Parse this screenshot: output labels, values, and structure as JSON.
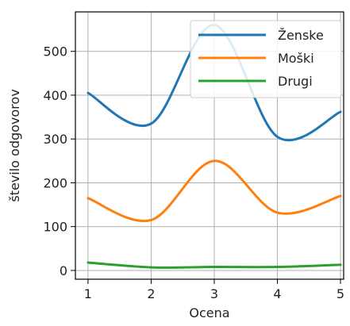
{
  "chart_data": {
    "type": "line",
    "xlabel": "Ocena",
    "ylabel": "število odgovorov",
    "x": [
      1,
      2,
      3,
      4,
      5
    ],
    "xticks": [
      1,
      2,
      3,
      4,
      5
    ],
    "yticks": [
      0,
      100,
      200,
      300,
      400,
      500
    ],
    "xlim": [
      0.8,
      5.05
    ],
    "ylim": [
      -20,
      590
    ],
    "grid": true,
    "legend_position": "top-right",
    "series": [
      {
        "name": "Ženske",
        "color": "#1f77b4",
        "values": [
          405,
          335,
          560,
          305,
          362
        ]
      },
      {
        "name": "Moški",
        "color": "#ff7f0e",
        "values": [
          165,
          115,
          250,
          132,
          170
        ]
      },
      {
        "name": "Drugi",
        "color": "#2ca02c",
        "values": [
          18,
          7,
          8,
          8,
          13
        ]
      }
    ]
  }
}
